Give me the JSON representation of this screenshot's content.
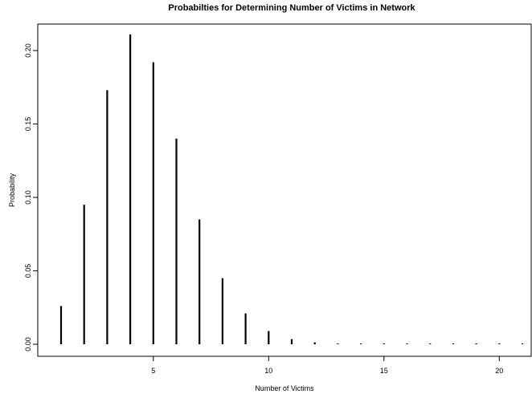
{
  "chart_data": {
    "type": "bar",
    "style": "histogram-spikes",
    "title": "Probabilties for Determining Number of Victims in Network",
    "xlabel": "Number of Victims",
    "ylabel": "Probability",
    "x": [
      1,
      2,
      3,
      4,
      5,
      6,
      7,
      8,
      9,
      10,
      11,
      12,
      13,
      14,
      15,
      16,
      17,
      18,
      19,
      20,
      21
    ],
    "values": [
      0.026,
      0.095,
      0.173,
      0.211,
      0.192,
      0.14,
      0.085,
      0.045,
      0.021,
      0.009,
      0.0035,
      0.0013,
      0.0005,
      0.0002,
      0.0001,
      3e-05,
      1e-05,
      0.0,
      0.0,
      0.0,
      0.0
    ],
    "xlim": [
      0.2,
      21.3
    ],
    "ylim": [
      0,
      0.22
    ],
    "xticks": [
      5,
      10,
      15,
      20
    ],
    "yticks": [
      0.0,
      0.05,
      0.1,
      0.15,
      0.2
    ],
    "xtick_labels": [
      "5",
      "10",
      "15",
      "20"
    ],
    "ytick_labels": [
      "0.00",
      "0.05",
      "0.10",
      "0.15",
      "0.20"
    ],
    "bar_color": "#000000",
    "grid": false,
    "legend": "none"
  }
}
